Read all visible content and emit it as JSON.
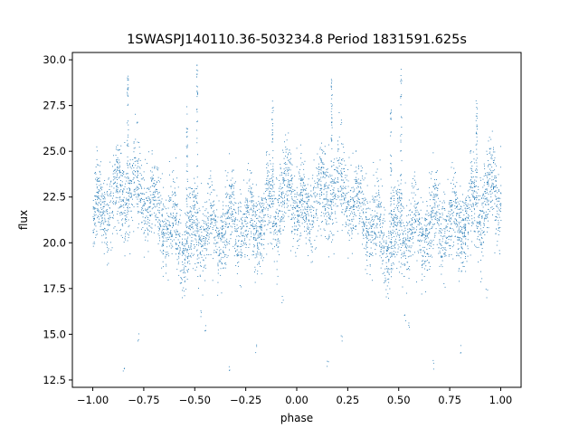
{
  "chart_data": {
    "type": "scatter",
    "title": "1SWASPJ140110.36-503234.8 Period 1831591.625s",
    "xlabel": "phase",
    "ylabel": "flux",
    "xlim": [
      -1.1,
      1.1
    ],
    "ylim": [
      12.1,
      30.4
    ],
    "x_ticks": [
      -1.0,
      -0.75,
      -0.5,
      -0.25,
      0.0,
      0.25,
      0.5,
      0.75,
      1.0
    ],
    "x_tick_labels": [
      "−1.00",
      "−0.75",
      "−0.50",
      "−0.25",
      "0.00",
      "0.25",
      "0.50",
      "0.75",
      "1.00"
    ],
    "y_ticks": [
      12.5,
      15.0,
      17.5,
      20.0,
      22.5,
      25.0,
      27.5,
      30.0
    ],
    "y_tick_labels": [
      "12.5",
      "15.0",
      "17.5",
      "20.0",
      "22.5",
      "25.0",
      "27.5",
      "30.0"
    ],
    "grid": false,
    "legend": "none",
    "marker_color": "#1f77b4",
    "series": [
      {
        "description_free_profile": true,
        "phase_profile": {
          "phase": [
            0.0,
            0.05,
            0.1,
            0.15,
            0.2,
            0.25,
            0.3,
            0.35,
            0.4,
            0.45,
            0.5,
            0.55,
            0.6,
            0.65,
            0.7,
            0.75,
            0.8,
            0.85,
            0.9,
            0.95,
            1.0
          ],
          "median_flux": [
            21.5,
            22.0,
            22.3,
            22.8,
            23.2,
            22.6,
            22.0,
            21.3,
            20.6,
            19.8,
            20.5,
            20.8,
            20.5,
            21.0,
            21.6,
            20.9,
            21.2,
            21.8,
            22.2,
            22.9,
            22.4
          ],
          "spread": [
            1.4,
            1.3,
            1.5,
            1.6,
            1.7,
            1.6,
            1.4,
            1.4,
            1.5,
            1.5,
            1.6,
            1.5,
            1.4,
            1.5,
            1.4,
            1.4,
            1.5,
            1.6,
            1.6,
            1.5,
            1.4
          ]
        }
      }
    ],
    "spikes": [
      {
        "phase": -0.49,
        "flux_top": 29.8
      },
      {
        "phase": 0.51,
        "flux_top": 29.8
      },
      {
        "phase": -0.83,
        "flux_top": 29.5
      },
      {
        "phase": 0.17,
        "flux_top": 29.0
      },
      {
        "phase": -0.12,
        "flux_top": 27.8
      },
      {
        "phase": 0.88,
        "flux_top": 27.8
      },
      {
        "phase": -0.54,
        "flux_top": 27.5
      },
      {
        "phase": 0.46,
        "flux_top": 27.5
      }
    ],
    "outliers": [
      {
        "phase": -0.45,
        "flux": 15.2
      },
      {
        "phase": 0.55,
        "flux": 15.4
      },
      {
        "phase": -0.85,
        "flux": 13.2
      },
      {
        "phase": 0.15,
        "flux": 13.4
      },
      {
        "phase": -0.33,
        "flux": 13.3
      },
      {
        "phase": 0.67,
        "flux": 13.3
      },
      {
        "phase": -0.2,
        "flux": 14.2
      },
      {
        "phase": 0.8,
        "flux": 14.2
      },
      {
        "phase": -0.78,
        "flux": 14.8
      },
      {
        "phase": 0.22,
        "flux": 14.8
      },
      {
        "phase": -0.47,
        "flux": 16.2
      },
      {
        "phase": 0.53,
        "flux": 16.0
      },
      {
        "phase": -0.07,
        "flux": 17.0
      },
      {
        "phase": 0.93,
        "flux": 17.2
      }
    ]
  }
}
